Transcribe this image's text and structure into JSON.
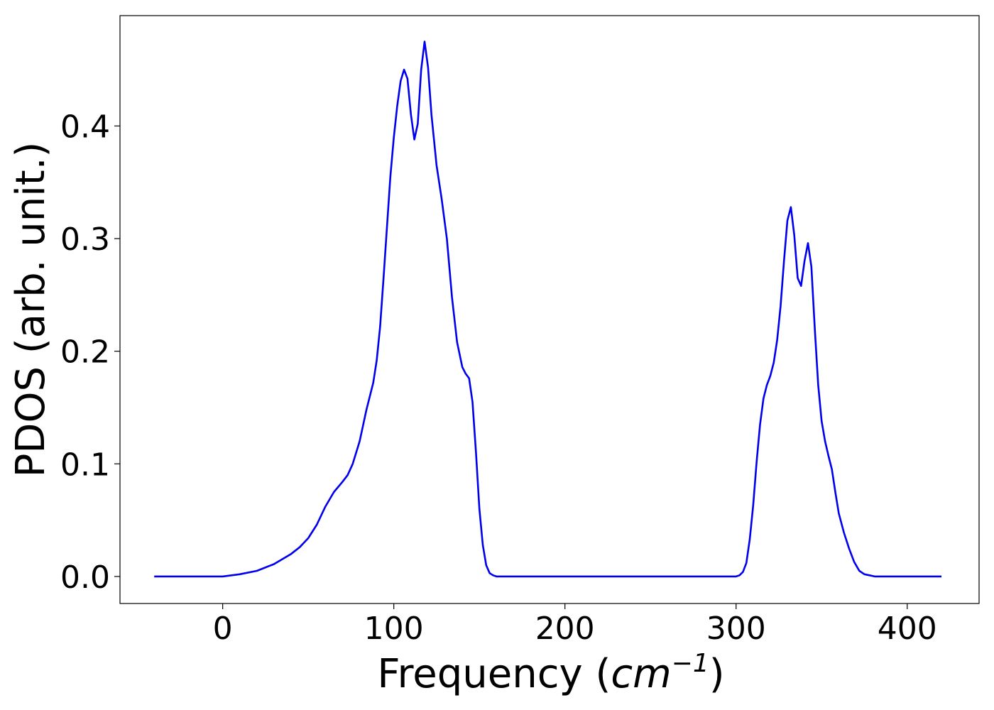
{
  "chart_data": {
    "type": "line",
    "title": "",
    "xlabel": "Frequency (",
    "xlabel_unit_base": "cm",
    "xlabel_unit_exp": "−1",
    "xlabel_suffix": ")",
    "ylabel": "PDOS (arb. unit.)",
    "xlim": [
      -60,
      442
    ],
    "ylim": [
      -0.024,
      0.498
    ],
    "xticks": [
      0,
      100,
      200,
      300,
      400
    ],
    "xtick_labels": [
      "0",
      "100",
      "200",
      "300",
      "400"
    ],
    "yticks": [
      0.0,
      0.1,
      0.2,
      0.3,
      0.4
    ],
    "ytick_labels": [
      "0.0",
      "0.1",
      "0.2",
      "0.3",
      "0.4"
    ],
    "grid": false,
    "line_color": "#0000ee",
    "series": [
      {
        "x": [
          -40,
          -20,
          0,
          10,
          20,
          30,
          40,
          45,
          50,
          55,
          60,
          65,
          70,
          73,
          76,
          80,
          84,
          88,
          90,
          92,
          94,
          96,
          98,
          100,
          102,
          104,
          106,
          108,
          110,
          112,
          114,
          116,
          118,
          120,
          122,
          125,
          128,
          131,
          134,
          137,
          140,
          142,
          144,
          146,
          148,
          150,
          152,
          154,
          156,
          158,
          160,
          180,
          200,
          250,
          300,
          302,
          304,
          306,
          308,
          310,
          312,
          314,
          316,
          318,
          320,
          322,
          324,
          326,
          328,
          330,
          332,
          334,
          336,
          338,
          340,
          342,
          344,
          346,
          348,
          350,
          352,
          354,
          356,
          358,
          360,
          363,
          366,
          369,
          372,
          375,
          378,
          381,
          384,
          386,
          388,
          390,
          400,
          420
        ],
        "y": [
          0.0,
          0.0,
          0.0,
          0.002,
          0.005,
          0.011,
          0.02,
          0.026,
          0.034,
          0.046,
          0.062,
          0.075,
          0.084,
          0.09,
          0.1,
          0.12,
          0.148,
          0.172,
          0.192,
          0.222,
          0.265,
          0.31,
          0.355,
          0.39,
          0.418,
          0.44,
          0.45,
          0.442,
          0.41,
          0.388,
          0.402,
          0.45,
          0.475,
          0.452,
          0.41,
          0.365,
          0.335,
          0.3,
          0.248,
          0.208,
          0.186,
          0.18,
          0.176,
          0.155,
          0.11,
          0.06,
          0.028,
          0.01,
          0.003,
          0.001,
          0.0,
          0.0,
          0.0,
          0.0,
          0.0,
          0.001,
          0.004,
          0.012,
          0.033,
          0.063,
          0.102,
          0.135,
          0.158,
          0.17,
          0.178,
          0.19,
          0.21,
          0.24,
          0.28,
          0.316,
          0.328,
          0.303,
          0.265,
          0.258,
          0.28,
          0.296,
          0.275,
          0.22,
          0.17,
          0.138,
          0.12,
          0.107,
          0.095,
          0.075,
          0.056,
          0.039,
          0.025,
          0.013,
          0.005,
          0.002,
          0.001,
          0.0,
          0.0,
          0.0,
          0.0,
          0.0,
          0.0,
          0.0
        ]
      }
    ]
  }
}
